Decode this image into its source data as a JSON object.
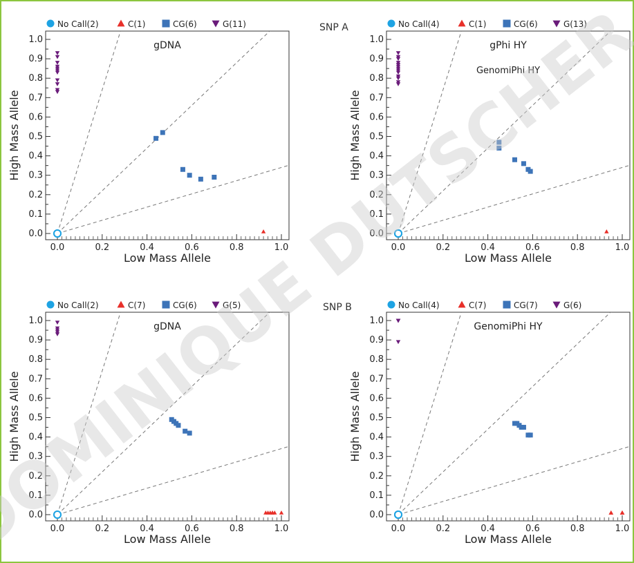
{
  "watermark": "DOMINIQUE DUTSCHER",
  "snp_labels": [
    "SNP A",
    "SNP B"
  ],
  "colors": {
    "frame": "#8cc63f",
    "nocall": "#1ea3e3",
    "C": "#e8302a",
    "CG": "#3d74b8",
    "G": "#6a1b7a",
    "watermark": "#d9d9d9"
  },
  "chart_data": [
    {
      "type": "scatter",
      "title": "gDNA",
      "subtitle": "",
      "xlabel": "Low Mass Allele",
      "ylabel": "High Mass Allele",
      "xlim": [
        0,
        1
      ],
      "ylim": [
        0,
        1
      ],
      "xticks": [
        "0.0",
        "0.2",
        "0.4",
        "0.6",
        "0.8",
        "1.0"
      ],
      "yticks": [
        "0.0",
        "0.1",
        "0.2",
        "0.3",
        "0.4",
        "0.5",
        "0.6",
        "0.7",
        "0.8",
        "0.9",
        "1.0"
      ],
      "legend": "top",
      "reference_line_slopes": [
        3.7,
        1.1,
        0.34
      ],
      "series": [
        {
          "name": "No Call(2)",
          "marker": "circle",
          "points": [
            [
              0.0,
              0.0
            ],
            [
              0.0,
              0.0
            ]
          ]
        },
        {
          "name": "C(1)",
          "marker": "triangle-up",
          "points": [
            [
              0.92,
              0.01
            ]
          ]
        },
        {
          "name": "CG(6)",
          "marker": "square",
          "points": [
            [
              0.44,
              0.49
            ],
            [
              0.47,
              0.52
            ],
            [
              0.56,
              0.33
            ],
            [
              0.59,
              0.3
            ],
            [
              0.64,
              0.28
            ],
            [
              0.7,
              0.29
            ]
          ]
        },
        {
          "name": "G(11)",
          "marker": "triangle-down",
          "points": [
            [
              0.0,
              0.93
            ],
            [
              0.0,
              0.91
            ],
            [
              0.0,
              0.88
            ],
            [
              0.0,
              0.86
            ],
            [
              0.0,
              0.85
            ],
            [
              0.0,
              0.84
            ],
            [
              0.0,
              0.83
            ],
            [
              0.0,
              0.79
            ],
            [
              0.0,
              0.77
            ],
            [
              0.0,
              0.74
            ],
            [
              0.0,
              0.73
            ]
          ]
        }
      ]
    },
    {
      "type": "scatter",
      "title": "gPhi HY",
      "subtitle": "GenomiPhi HY",
      "xlabel": "Low Mass Allele",
      "ylabel": "High Mass Allele",
      "xlim": [
        0,
        1
      ],
      "ylim": [
        0,
        1
      ],
      "xticks": [
        "0.0",
        "0.2",
        "0.4",
        "0.6",
        "0.8",
        "1.0"
      ],
      "yticks": [
        "0.0",
        "0.1",
        "0.2",
        "0.3",
        "0.4",
        "0.5",
        "0.6",
        "0.7",
        "0.8",
        "0.9",
        "1.0"
      ],
      "legend": "top",
      "reference_line_slopes": [
        3.7,
        1.1,
        0.34
      ],
      "series": [
        {
          "name": "No Call(4)",
          "marker": "circle",
          "points": [
            [
              0.0,
              0.0
            ],
            [
              0.0,
              0.0
            ],
            [
              0.0,
              0.0
            ],
            [
              0.0,
              0.0
            ]
          ]
        },
        {
          "name": "C(1)",
          "marker": "triangle-up",
          "points": [
            [
              0.93,
              0.01
            ]
          ]
        },
        {
          "name": "CG(6)",
          "marker": "square",
          "points": [
            [
              0.45,
              0.47
            ],
            [
              0.45,
              0.44
            ],
            [
              0.52,
              0.38
            ],
            [
              0.56,
              0.36
            ],
            [
              0.58,
              0.33
            ],
            [
              0.59,
              0.32
            ]
          ]
        },
        {
          "name": "G(13)",
          "marker": "triangle-down",
          "points": [
            [
              0.0,
              0.93
            ],
            [
              0.0,
              0.91
            ],
            [
              0.0,
              0.9
            ],
            [
              0.0,
              0.88
            ],
            [
              0.0,
              0.87
            ],
            [
              0.0,
              0.86
            ],
            [
              0.0,
              0.85
            ],
            [
              0.0,
              0.84
            ],
            [
              0.0,
              0.83
            ],
            [
              0.0,
              0.81
            ],
            [
              0.0,
              0.8
            ],
            [
              0.0,
              0.78
            ],
            [
              0.0,
              0.77
            ]
          ]
        }
      ]
    },
    {
      "type": "scatter",
      "title": "gDNA",
      "subtitle": "",
      "xlabel": "Low Mass Allele",
      "ylabel": "High Mass Allele",
      "xlim": [
        0,
        1
      ],
      "ylim": [
        0,
        1
      ],
      "xticks": [
        "0.0",
        "0.2",
        "0.4",
        "0.6",
        "0.8",
        "1.0"
      ],
      "yticks": [
        "0.0",
        "0.1",
        "0.2",
        "0.3",
        "0.4",
        "0.5",
        "0.6",
        "0.7",
        "0.8",
        "0.9",
        "1.0"
      ],
      "legend": "top",
      "reference_line_slopes": [
        3.7,
        1.1,
        0.34
      ],
      "series": [
        {
          "name": "No Call(2)",
          "marker": "circle",
          "points": [
            [
              0.0,
              0.0
            ],
            [
              0.0,
              0.0
            ]
          ]
        },
        {
          "name": "C(7)",
          "marker": "triangle-up",
          "points": [
            [
              0.93,
              0.01
            ],
            [
              0.94,
              0.01
            ],
            [
              0.95,
              0.01
            ],
            [
              0.96,
              0.01
            ],
            [
              0.96,
              0.01
            ],
            [
              0.97,
              0.01
            ],
            [
              1.0,
              0.01
            ]
          ]
        },
        {
          "name": "CG(6)",
          "marker": "square",
          "points": [
            [
              0.51,
              0.49
            ],
            [
              0.52,
              0.48
            ],
            [
              0.53,
              0.47
            ],
            [
              0.54,
              0.46
            ],
            [
              0.57,
              0.43
            ],
            [
              0.59,
              0.42
            ]
          ]
        },
        {
          "name": "G(5)",
          "marker": "triangle-down",
          "points": [
            [
              0.0,
              0.99
            ],
            [
              0.0,
              0.96
            ],
            [
              0.0,
              0.95
            ],
            [
              0.0,
              0.94
            ],
            [
              0.0,
              0.93
            ]
          ]
        }
      ]
    },
    {
      "type": "scatter",
      "title": "GenomiPhi HY",
      "subtitle": "",
      "xlabel": "Low Mass Allele",
      "ylabel": "High Mass Allele",
      "xlim": [
        0,
        1
      ],
      "ylim": [
        0,
        1
      ],
      "xticks": [
        "0.0",
        "0.2",
        "0.4",
        "0.6",
        "0.8",
        "1.0"
      ],
      "yticks": [
        "0.0",
        "0.1",
        "0.2",
        "0.3",
        "0.4",
        "0.5",
        "0.6",
        "0.7",
        "0.8",
        "0.9",
        "1.0"
      ],
      "legend": "top",
      "reference_line_slopes": [
        3.7,
        1.1,
        0.34
      ],
      "series": [
        {
          "name": "No Call(4)",
          "marker": "circle",
          "points": [
            [
              0.0,
              0.0
            ],
            [
              0.0,
              0.0
            ],
            [
              0.0,
              0.0
            ],
            [
              0.0,
              0.0
            ]
          ]
        },
        {
          "name": "C(7)",
          "marker": "triangle-up",
          "points": [
            [
              0.95,
              0.01
            ],
            [
              0.95,
              0.01
            ],
            [
              0.95,
              0.01
            ],
            [
              1.0,
              0.01
            ],
            [
              1.0,
              0.01
            ],
            [
              1.0,
              0.01
            ],
            [
              1.0,
              0.01
            ]
          ]
        },
        {
          "name": "CG(7)",
          "marker": "square",
          "points": [
            [
              0.52,
              0.47
            ],
            [
              0.53,
              0.47
            ],
            [
              0.54,
              0.46
            ],
            [
              0.55,
              0.45
            ],
            [
              0.56,
              0.45
            ],
            [
              0.58,
              0.41
            ],
            [
              0.59,
              0.41
            ]
          ]
        },
        {
          "name": "G(6)",
          "marker": "triangle-down",
          "points": [
            [
              0.0,
              1.0
            ],
            [
              0.0,
              1.0
            ],
            [
              0.0,
              1.0
            ],
            [
              0.0,
              1.0
            ],
            [
              0.0,
              1.0
            ],
            [
              0.0,
              0.89
            ]
          ]
        }
      ]
    }
  ]
}
